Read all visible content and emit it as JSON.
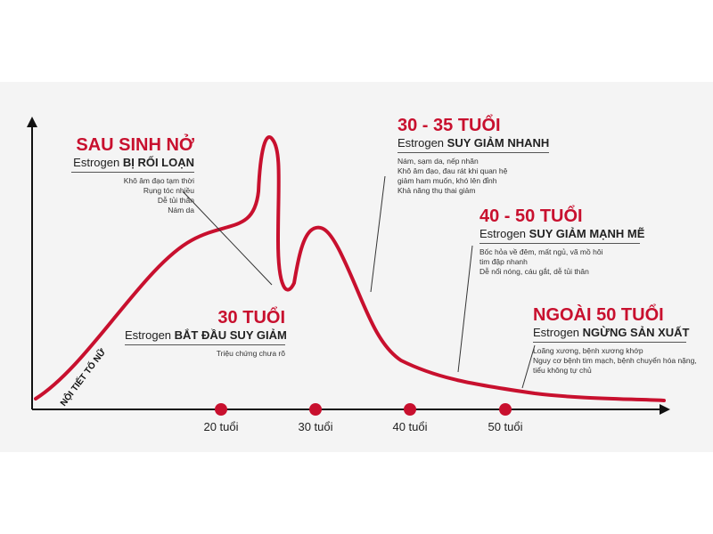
{
  "chart_data": {
    "type": "line",
    "ylabel": "NỘI TIẾT TỐ NỮ",
    "x_ticks": [
      "20 tuổi",
      "30 tuổi",
      "40 tuổi",
      "50 tuổi"
    ],
    "series_color": "#c8102e",
    "axis_color": "#111111"
  },
  "annotations": {
    "postpartum": {
      "heading": "SAU SINH NỞ",
      "sub_prefix": "Estrogen ",
      "sub_bold": "BỊ RỐI LOẠN",
      "notes": [
        "Khô âm đạo tạm thời",
        "Rụng tóc nhiều",
        "Dễ tủi thân",
        "Nám da"
      ]
    },
    "age30": {
      "heading": "30 TUỔI",
      "sub_prefix": "Estrogen ",
      "sub_bold": "BẮT ĐẦU SUY GIẢM",
      "notes": [
        "Triệu chứng chưa rõ"
      ]
    },
    "age30_35": {
      "heading": "30 - 35 TUỔI",
      "sub_prefix": "Estrogen ",
      "sub_bold": "SUY GIẢM NHANH",
      "notes": [
        "Nám, sạm da, nếp nhăn",
        "Khô âm đạo, đau rát khi quan hệ",
        "giảm ham muốn, khó lên đỉnh",
        "Khả năng thụ thai giảm"
      ]
    },
    "age40_50": {
      "heading": "40 - 50 TUỔI",
      "sub_prefix": "Estrogen ",
      "sub_bold": "SUY GIẢM MẠNH MẼ",
      "notes": [
        "Bốc hỏa về đêm, mất ngủ, vã mồ hôi",
        "tim đập nhanh",
        "Dễ nổi nóng, cáu gắt, dễ tủi thân"
      ]
    },
    "over50": {
      "heading": "NGOÀI 50 TUỔI",
      "sub_prefix": "Estrogen ",
      "sub_bold": "NGỪNG SẢN XUẤT",
      "notes": [
        "Loãng xương, bệnh xương khớp",
        "Nguy cơ bệnh tim mạch, bệnh chuyển hóa nặng,",
        "tiểu không tự chủ"
      ]
    }
  }
}
